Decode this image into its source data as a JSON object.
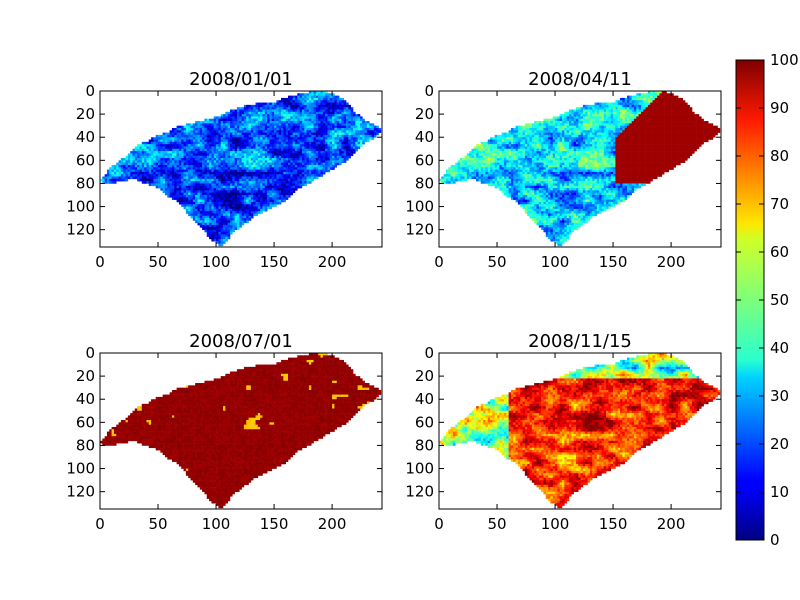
{
  "figure": {
    "type": "heatmap-grid",
    "colormap": "jet",
    "colorbar": {
      "min": 0,
      "max": 100,
      "ticks": [
        "0",
        "10",
        "20",
        "30",
        "40",
        "50",
        "60",
        "70",
        "80",
        "90",
        "100"
      ]
    }
  },
  "chart_data": [
    {
      "type": "heatmap",
      "title": "2008/01/01",
      "xlim": [
        0,
        243
      ],
      "ylim": [
        135,
        0
      ],
      "xticks": [
        "0",
        "50",
        "100",
        "150",
        "200"
      ],
      "yticks": [
        "0",
        "20",
        "40",
        "60",
        "80",
        "100",
        "120"
      ],
      "value_range": [
        0,
        100
      ],
      "typical_value": 20
    },
    {
      "type": "heatmap",
      "title": "2008/04/11",
      "xlim": [
        0,
        243
      ],
      "ylim": [
        135,
        0
      ],
      "xticks": [
        "0",
        "50",
        "100",
        "150",
        "200"
      ],
      "yticks": [
        "0",
        "20",
        "40",
        "60",
        "80",
        "100",
        "120"
      ],
      "value_range": [
        0,
        100
      ],
      "typical_value": 35
    },
    {
      "type": "heatmap",
      "title": "2008/07/01",
      "xlim": [
        0,
        243
      ],
      "ylim": [
        135,
        0
      ],
      "xticks": [
        "0",
        "50",
        "100",
        "150",
        "200"
      ],
      "yticks": [
        "0",
        "20",
        "40",
        "60",
        "80",
        "100",
        "120"
      ],
      "value_range": [
        0,
        100
      ],
      "typical_value": 98
    },
    {
      "type": "heatmap",
      "title": "2008/11/15",
      "xlim": [
        0,
        243
      ],
      "ylim": [
        135,
        0
      ],
      "xticks": [
        "0",
        "50",
        "100",
        "150",
        "200"
      ],
      "yticks": [
        "0",
        "20",
        "40",
        "60",
        "80",
        "100",
        "120"
      ],
      "value_range": [
        0,
        100
      ],
      "typical_value": 85
    }
  ]
}
